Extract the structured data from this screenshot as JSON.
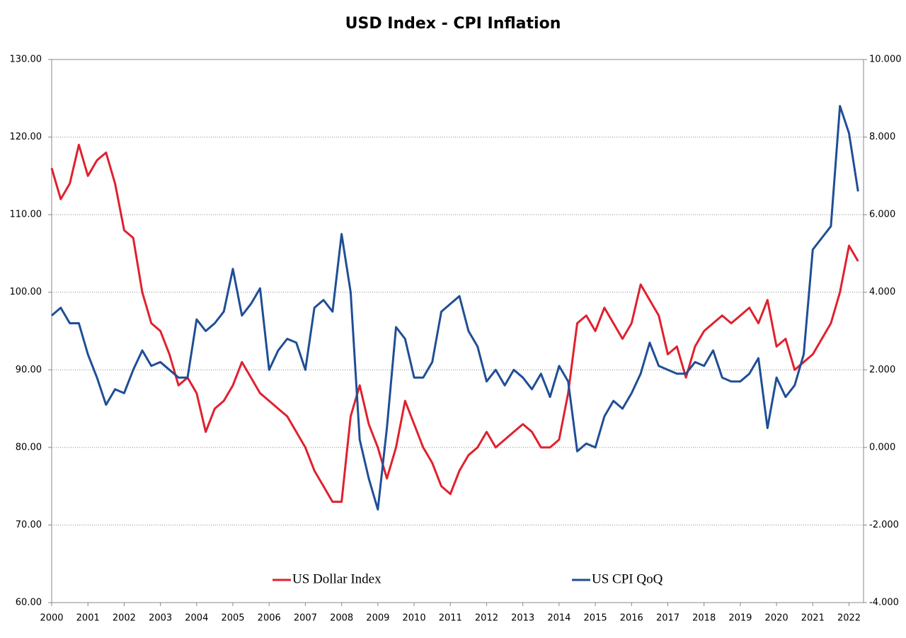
{
  "chart_data": {
    "type": "line",
    "title": "USD Index - CPI Inflation",
    "x": [
      2000,
      2000.25,
      2000.5,
      2000.75,
      2001,
      2001.25,
      2001.5,
      2001.75,
      2002,
      2002.25,
      2002.5,
      2002.75,
      2003,
      2003.25,
      2003.5,
      2003.75,
      2004,
      2004.25,
      2004.5,
      2004.75,
      2005,
      2005.25,
      2005.5,
      2005.75,
      2006,
      2006.25,
      2006.5,
      2006.75,
      2007,
      2007.25,
      2007.5,
      2007.75,
      2008,
      2008.25,
      2008.5,
      2008.75,
      2009,
      2009.25,
      2009.5,
      2009.75,
      2010,
      2010.25,
      2010.5,
      2010.75,
      2011,
      2011.25,
      2011.5,
      2011.75,
      2012,
      2012.25,
      2012.5,
      2012.75,
      2013,
      2013.25,
      2013.5,
      2013.75,
      2014,
      2014.25,
      2014.5,
      2014.75,
      2015,
      2015.25,
      2015.5,
      2015.75,
      2016,
      2016.25,
      2016.5,
      2016.75,
      2017,
      2017.25,
      2017.5,
      2017.75,
      2018,
      2018.25,
      2018.5,
      2018.75,
      2019,
      2019.25,
      2019.5,
      2019.75,
      2020,
      2020.25,
      2020.5,
      2020.75,
      2021,
      2021.25,
      2021.5,
      2021.75,
      2022,
      2022.25
    ],
    "series": [
      {
        "name": "US Dollar Index",
        "color": "#e0202e",
        "axis": "y",
        "values": [
          116,
          112,
          114,
          119,
          115,
          117,
          118,
          114,
          108,
          107,
          100,
          96,
          95,
          92,
          88,
          89,
          87,
          82,
          85,
          86,
          88,
          91,
          89,
          87,
          86,
          85,
          84,
          82,
          80,
          77,
          75,
          73,
          73,
          84,
          88,
          83,
          80,
          76,
          80,
          86,
          83,
          80,
          78,
          75,
          74,
          77,
          79,
          80,
          82,
          80,
          81,
          82,
          83,
          82,
          80,
          80,
          81,
          87,
          96,
          97,
          95,
          98,
          96,
          94,
          96,
          101,
          99,
          97,
          92,
          93,
          89,
          93,
          95,
          96,
          97,
          96,
          97,
          98,
          96,
          99,
          93,
          94,
          90,
          91,
          92,
          94,
          96,
          100,
          106,
          104
        ]
      },
      {
        "name": "US CPI QoQ",
        "color": "#1f4e96",
        "axis": "y2",
        "values": [
          3.4,
          3.6,
          3.2,
          3.2,
          2.4,
          1.8,
          1.1,
          1.5,
          1.4,
          2.0,
          2.5,
          2.1,
          2.2,
          2.0,
          1.8,
          1.8,
          3.3,
          3.0,
          3.2,
          3.5,
          4.6,
          3.4,
          3.7,
          4.1,
          2.0,
          2.5,
          2.8,
          2.7,
          2.0,
          3.6,
          3.8,
          3.5,
          5.5,
          4.0,
          0.2,
          -0.8,
          -1.6,
          0.5,
          3.1,
          2.8,
          1.8,
          1.8,
          2.2,
          3.5,
          3.7,
          3.9,
          3.0,
          2.6,
          1.7,
          2.0,
          1.6,
          2.0,
          1.8,
          1.5,
          1.9,
          1.3,
          2.1,
          1.7,
          -0.1,
          0.1,
          0.0,
          0.8,
          1.2,
          1.0,
          1.4,
          1.9,
          2.7,
          2.1,
          2.0,
          1.9,
          1.9,
          2.2,
          2.1,
          2.5,
          1.8,
          1.7,
          1.7,
          1.9,
          2.3,
          0.5,
          1.8,
          1.3,
          1.6,
          2.4,
          5.1,
          5.4,
          5.7,
          8.8,
          8.1,
          6.6
        ]
      }
    ],
    "xlim": [
      2000,
      2022.4
    ],
    "xticks": [
      2000,
      2001,
      2002,
      2003,
      2004,
      2005,
      2006,
      2007,
      2008,
      2009,
      2010,
      2011,
      2012,
      2013,
      2014,
      2015,
      2016,
      2017,
      2018,
      2019,
      2020,
      2021,
      2022
    ],
    "ylim": [
      60,
      130
    ],
    "yticks": [
      {
        "value": 60,
        "label": "60.00"
      },
      {
        "value": 70,
        "label": "70.00"
      },
      {
        "value": 80,
        "label": "80.00"
      },
      {
        "value": 90,
        "label": "90.00"
      },
      {
        "value": 100,
        "label": "100.00"
      },
      {
        "value": 110,
        "label": "110.00"
      },
      {
        "value": 120,
        "label": "120.00"
      },
      {
        "value": 130,
        "label": "130.00"
      }
    ],
    "y2lim": [
      -4,
      10
    ],
    "y2ticks": [
      {
        "value": -4,
        "label": "-4.000"
      },
      {
        "value": -2,
        "label": "-2.000"
      },
      {
        "value": 0,
        "label": "0.000"
      },
      {
        "value": 2,
        "label": "2.000"
      },
      {
        "value": 4,
        "label": "4.000"
      },
      {
        "value": 6,
        "label": "6.000"
      },
      {
        "value": 8,
        "label": "8.000"
      },
      {
        "value": 10,
        "label": "10.000"
      }
    ],
    "grid": true,
    "legend": "bottom"
  }
}
